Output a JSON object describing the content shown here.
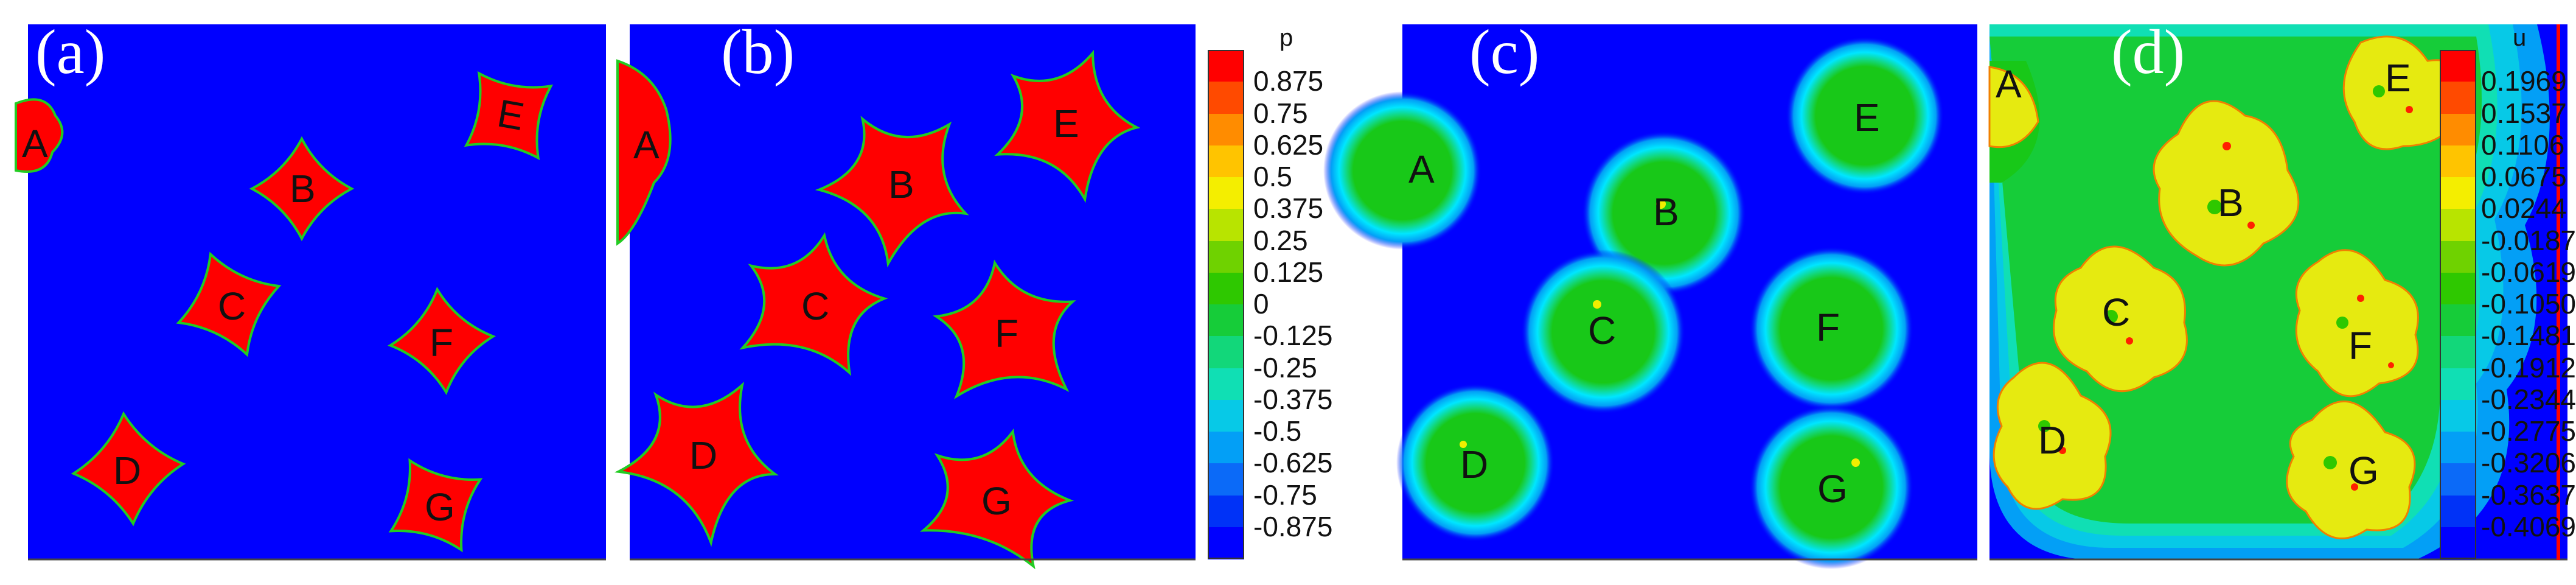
{
  "panels": [
    {
      "id": "a",
      "label": "(a)",
      "type": "p"
    },
    {
      "id": "b",
      "label": "(b)",
      "type": "p"
    },
    {
      "id": "c",
      "label": "(c)",
      "type": "u"
    },
    {
      "id": "d",
      "label": "(d)",
      "type": "u"
    }
  ],
  "crystal_labels": [
    "A",
    "B",
    "C",
    "D",
    "E",
    "F",
    "G"
  ],
  "legend_p": {
    "title": "p",
    "ticks": [
      "0.875",
      "0.75",
      "0.625",
      "0.5",
      "0.375",
      "0.25",
      "0.125",
      "0",
      "-0.125",
      "-0.25",
      "-0.375",
      "-0.5",
      "-0.625",
      "-0.75",
      "-0.875"
    ],
    "colors": [
      "#ff0000",
      "#ff4a00",
      "#ff8c00",
      "#ffc400",
      "#f4ee00",
      "#b8e400",
      "#6fd200",
      "#2ec800",
      "#16cc39",
      "#12d77a",
      "#10dfb4",
      "#07c9e7",
      "#039ff6",
      "#0b6af8",
      "#0032f7",
      "#0000ff"
    ]
  },
  "legend_u": {
    "title": "u",
    "ticks": [
      "0.1969",
      "0.1537",
      "0.1106",
      "0.0675",
      "0.0244",
      "-0.0187",
      "-0.0619",
      "-0.1050",
      "-0.1481",
      "-0.1912",
      "-0.2344",
      "-0.2775",
      "-0.3206",
      "-0.3637",
      "-0.4069"
    ],
    "colors": [
      "#ff0000",
      "#ff4a00",
      "#ff8c00",
      "#ffc400",
      "#f4ee00",
      "#b8e400",
      "#6fd200",
      "#2ec800",
      "#16cc39",
      "#12d77a",
      "#10dfb4",
      "#07c9e7",
      "#039ff6",
      "#0b6af8",
      "#0032f7",
      "#0000ff"
    ]
  },
  "colors": {
    "background_blue": "#0000ff",
    "solid_red": "#ff0000",
    "interface_green": "#18c818",
    "halo_cyan": "#00e6ff",
    "halo_teal": "#00c8a0",
    "crystal_yellow": "#f0ee00",
    "right_border_red": "#ff0000"
  }
}
